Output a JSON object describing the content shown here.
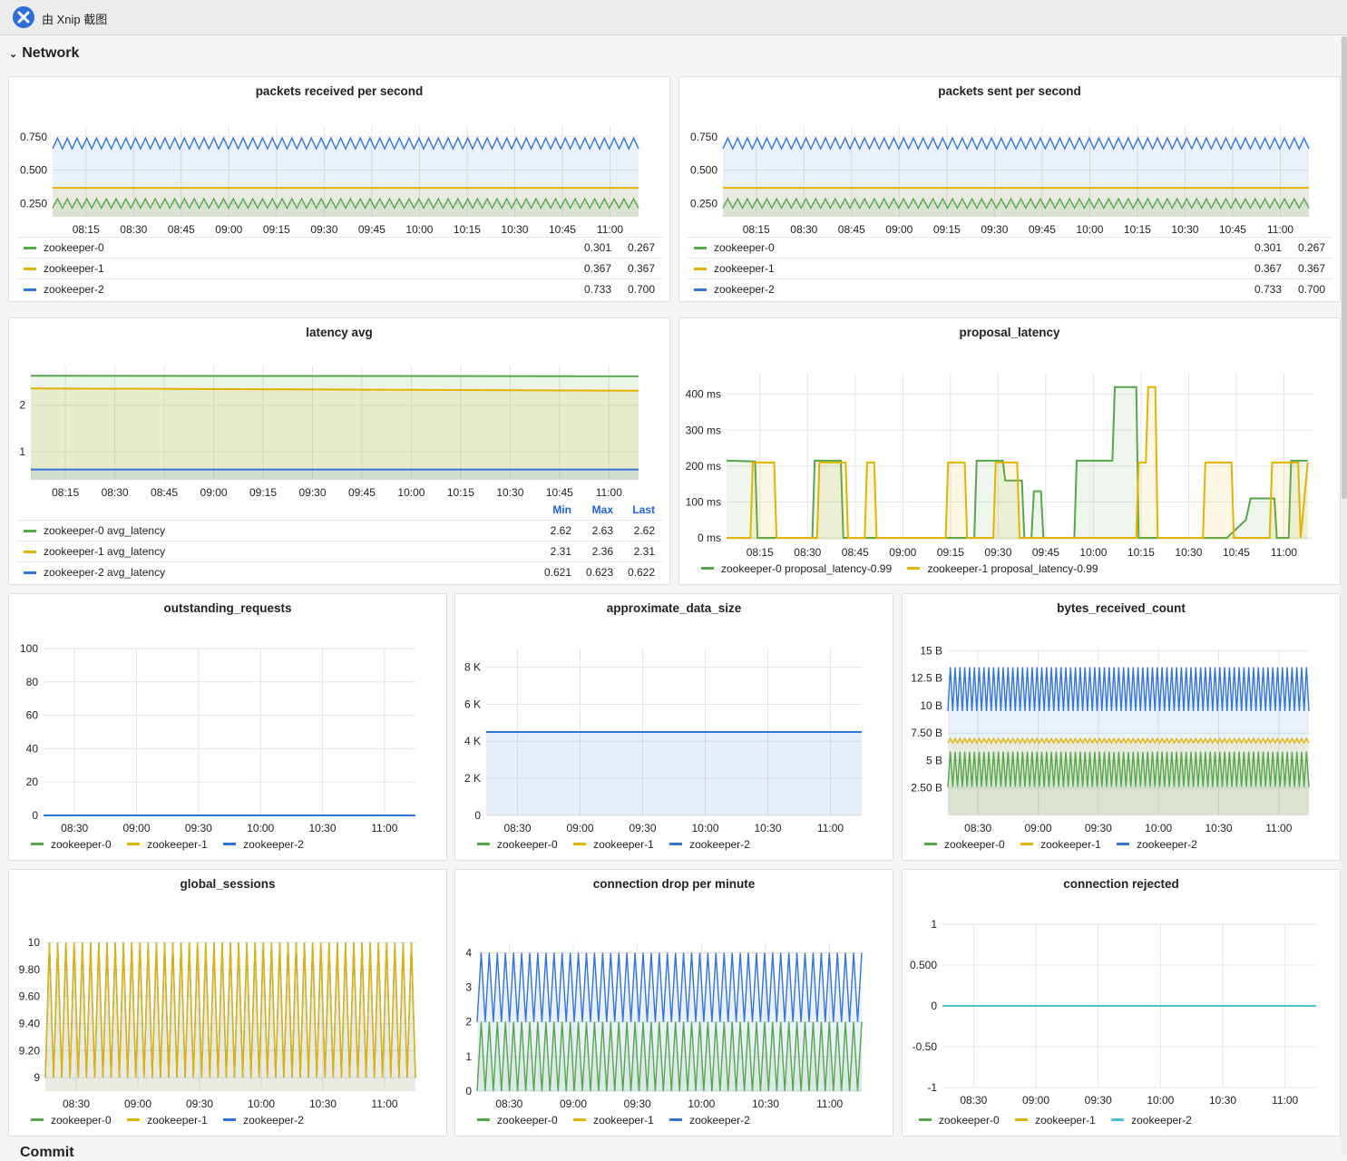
{
  "window": {
    "title": "由 Xnip 截图"
  },
  "row": {
    "title": "Network",
    "next_title": "Commit"
  },
  "colors": {
    "green": "#56a64b",
    "yellow": "#e0b400",
    "blue": "#3274d9",
    "teal": "#4fc0d0"
  },
  "panels": {
    "p1": {
      "title": "packets received per second",
      "legend": [
        {
          "name": "zookeeper-0",
          "color": "#56a64b",
          "v1": "0.301",
          "v2": "0.267"
        },
        {
          "name": "zookeeper-1",
          "color": "#e0b400",
          "v1": "0.367",
          "v2": "0.367"
        },
        {
          "name": "zookeeper-2",
          "color": "#3274d9",
          "v1": "0.733",
          "v2": "0.700"
        }
      ]
    },
    "p2": {
      "title": "packets sent per second",
      "legend": [
        {
          "name": "zookeeper-0",
          "color": "#56a64b",
          "v1": "0.301",
          "v2": "0.267"
        },
        {
          "name": "zookeeper-1",
          "color": "#e0b400",
          "v1": "0.367",
          "v2": "0.367"
        },
        {
          "name": "zookeeper-2",
          "color": "#3274d9",
          "v1": "0.733",
          "v2": "0.700"
        }
      ]
    },
    "p3": {
      "title": "latency avg",
      "legend_headers": [
        "Min",
        "Max",
        "Last"
      ],
      "legend": [
        {
          "name": "zookeeper-0 avg_latency",
          "color": "#56a64b",
          "v1": "2.62",
          "v2": "2.63",
          "v3": "2.62"
        },
        {
          "name": "zookeeper-1 avg_latency",
          "color": "#e0b400",
          "v1": "2.31",
          "v2": "2.36",
          "v3": "2.31"
        },
        {
          "name": "zookeeper-2 avg_latency",
          "color": "#3274d9",
          "v1": "0.621",
          "v2": "0.623",
          "v3": "0.622"
        }
      ]
    },
    "p4": {
      "title": "proposal_latency",
      "legend": [
        {
          "name": "zookeeper-0 proposal_latency-0.99",
          "color": "#56a64b"
        },
        {
          "name": "zookeeper-1 proposal_latency-0.99",
          "color": "#e0b400"
        }
      ]
    },
    "p5": {
      "title": "outstanding_requests"
    },
    "p6": {
      "title": "approximate_data_size"
    },
    "p7": {
      "title": "bytes_received_count"
    },
    "p8": {
      "title": "global_sessions"
    },
    "p9": {
      "title": "connection drop per minute"
    },
    "p10": {
      "title": "connection rejected"
    },
    "legend3": [
      {
        "name": "zookeeper-0",
        "color": "#56a64b"
      },
      {
        "name": "zookeeper-1",
        "color": "#e0b400"
      },
      {
        "name": "zookeeper-2",
        "color": "#3274d9"
      }
    ],
    "legend3_teal": [
      {
        "name": "zookeeper-0",
        "color": "#56a64b"
      },
      {
        "name": "zookeeper-1",
        "color": "#e0b400"
      },
      {
        "name": "zookeeper-2",
        "color": "#4fc0d0"
      }
    ]
  },
  "chart_data": [
    {
      "id": "c1",
      "type": "line",
      "title": "packets received per second",
      "x_ticks": [
        "08:15",
        "08:30",
        "08:45",
        "09:00",
        "09:15",
        "09:30",
        "09:45",
        "10:00",
        "10:15",
        "10:30",
        "10:45",
        "11:00"
      ],
      "y_ticks": [
        "0.250",
        "0.500",
        "0.750"
      ],
      "y_tick_values": [
        0.25,
        0.5,
        0.75
      ],
      "ylim": [
        0.15,
        0.83
      ],
      "xlim": [
        0,
        12.3
      ],
      "series": [
        {
          "name": "zookeeper-2",
          "base": 0.7,
          "amp": 0.04,
          "osc": 120
        },
        {
          "name": "zookeeper-1",
          "base": 0.367,
          "amp": 0,
          "osc": 0
        },
        {
          "name": "zookeeper-0",
          "base": 0.25,
          "amp": 0.035,
          "osc": 120
        }
      ]
    },
    {
      "id": "c2",
      "type": "line",
      "title": "packets sent per second",
      "x_ticks": [
        "08:15",
        "08:30",
        "08:45",
        "09:00",
        "09:15",
        "09:30",
        "09:45",
        "10:00",
        "10:15",
        "10:30",
        "10:45",
        "11:00"
      ],
      "y_ticks": [
        "0.250",
        "0.500",
        "0.750"
      ],
      "y_tick_values": [
        0.25,
        0.5,
        0.75
      ],
      "ylim": [
        0.15,
        0.83
      ],
      "xlim": [
        0,
        12.3
      ],
      "series": [
        {
          "name": "zookeeper-2",
          "base": 0.7,
          "amp": 0.04,
          "osc": 120
        },
        {
          "name": "zookeeper-1",
          "base": 0.367,
          "amp": 0,
          "osc": 0
        },
        {
          "name": "zookeeper-0",
          "base": 0.25,
          "amp": 0.035,
          "osc": 120
        }
      ]
    },
    {
      "id": "c3",
      "type": "area",
      "title": "latency avg",
      "x_ticks": [
        "08:15",
        "08:30",
        "08:45",
        "09:00",
        "09:15",
        "09:30",
        "09:45",
        "10:00",
        "10:15",
        "10:30",
        "10:45",
        "11:00"
      ],
      "y_ticks": [
        "1",
        "2"
      ],
      "y_tick_values": [
        1,
        2
      ],
      "ylim": [
        0.4,
        2.85
      ],
      "xlim": [
        0,
        12.3
      ],
      "series": [
        {
          "name": "zookeeper-0 avg_latency",
          "values": [
            2.63,
            2.62
          ]
        },
        {
          "name": "zookeeper-1 avg_latency",
          "values": [
            2.36,
            2.31
          ]
        },
        {
          "name": "zookeeper-2 avg_latency",
          "values": [
            0.622,
            0.622
          ]
        }
      ]
    },
    {
      "id": "c4",
      "type": "line",
      "title": "proposal_latency",
      "x_ticks": [
        "08:15",
        "08:30",
        "08:45",
        "09:00",
        "09:15",
        "09:30",
        "09:45",
        "10:00",
        "10:15",
        "10:30",
        "10:45",
        "11:00"
      ],
      "y_ticks": [
        "0 ms",
        "100 ms",
        "200 ms",
        "300 ms",
        "400 ms"
      ],
      "y_tick_values": [
        0,
        100,
        200,
        300,
        400
      ],
      "ylim": [
        -5,
        460
      ],
      "xlim": [
        0,
        12.3
      ],
      "series": [
        {
          "name": "zookeeper-0 proposal_latency-0.99",
          "values": [
            [
              0,
              215
            ],
            [
              0.6,
              213
            ],
            [
              0.65,
              0
            ],
            [
              1.8,
              0
            ],
            [
              1.85,
              215
            ],
            [
              2.4,
              215
            ],
            [
              2.45,
              0
            ],
            [
              4,
              0
            ],
            [
              5.2,
              0
            ],
            [
              5.25,
              215
            ],
            [
              5.8,
              215
            ],
            [
              5.85,
              160
            ],
            [
              6.2,
              160
            ],
            [
              6.25,
              0
            ],
            [
              6.4,
              0
            ],
            [
              6.45,
              130
            ],
            [
              6.6,
              130
            ],
            [
              6.65,
              0
            ],
            [
              7.3,
              0
            ],
            [
              7.35,
              215
            ],
            [
              8.1,
              215
            ],
            [
              8.15,
              420
            ],
            [
              8.6,
              420
            ],
            [
              8.65,
              0
            ],
            [
              10.5,
              0
            ],
            [
              10.9,
              50
            ],
            [
              11,
              110
            ],
            [
              11.5,
              110
            ],
            [
              11.55,
              0
            ],
            [
              11.8,
              0
            ],
            [
              11.85,
              215
            ],
            [
              12.2,
              215
            ]
          ]
        },
        {
          "name": "zookeeper-1 proposal_latency-0.99",
          "values": [
            [
              0,
              0
            ],
            [
              0.5,
              0
            ],
            [
              0.55,
              210
            ],
            [
              1.0,
              210
            ],
            [
              1.05,
              0
            ],
            [
              1.9,
              0
            ],
            [
              1.95,
              210
            ],
            [
              2.5,
              210
            ],
            [
              2.55,
              0
            ],
            [
              2.9,
              0
            ],
            [
              2.95,
              210
            ],
            [
              3.1,
              210
            ],
            [
              3.15,
              0
            ],
            [
              4.6,
              0
            ],
            [
              4.65,
              210
            ],
            [
              5.0,
              210
            ],
            [
              5.05,
              0
            ],
            [
              5.6,
              0
            ],
            [
              5.65,
              210
            ],
            [
              6.1,
              210
            ],
            [
              6.15,
              0
            ],
            [
              8.6,
              0
            ],
            [
              8.65,
              210
            ],
            [
              8.8,
              210
            ],
            [
              8.85,
              420
            ],
            [
              9.0,
              420
            ],
            [
              9.05,
              0
            ],
            [
              10.0,
              0
            ],
            [
              10.05,
              210
            ],
            [
              10.6,
              210
            ],
            [
              10.65,
              0
            ],
            [
              11.4,
              0
            ],
            [
              11.45,
              210
            ],
            [
              12.0,
              210
            ],
            [
              12.05,
              0
            ],
            [
              12.2,
              210
            ]
          ]
        }
      ]
    },
    {
      "id": "c5",
      "type": "line",
      "title": "outstanding_requests",
      "x_ticks": [
        "08:30",
        "09:00",
        "09:30",
        "10:00",
        "10:30",
        "11:00"
      ],
      "y_ticks": [
        "0",
        "20",
        "40",
        "60",
        "80",
        "100"
      ],
      "y_tick_values": [
        0,
        20,
        40,
        60,
        80,
        100
      ],
      "ylim": [
        0,
        100
      ],
      "xlim": [
        0,
        6
      ],
      "series": [
        {
          "name": "zookeeper-2",
          "values": [
            0,
            0
          ]
        }
      ]
    },
    {
      "id": "c6",
      "type": "area",
      "title": "approximate_data_size",
      "x_ticks": [
        "08:30",
        "09:00",
        "09:30",
        "10:00",
        "10:30",
        "11:00"
      ],
      "y_ticks": [
        "0",
        "2 K",
        "4 K",
        "6 K",
        "8 K"
      ],
      "y_tick_values": [
        0,
        2000,
        4000,
        6000,
        8000
      ],
      "ylim": [
        0,
        9000
      ],
      "xlim": [
        0,
        6
      ],
      "series": [
        {
          "name": "zookeeper-2",
          "values": [
            4500,
            4500
          ]
        }
      ]
    },
    {
      "id": "c7",
      "type": "line",
      "title": "bytes_received_count",
      "x_ticks": [
        "08:30",
        "09:00",
        "09:30",
        "10:00",
        "10:30",
        "11:00"
      ],
      "y_ticks": [
        "2.50 B",
        "5 B",
        "7.50 B",
        "10 B",
        "12.5 B",
        "15 B"
      ],
      "y_tick_values": [
        2.5,
        5,
        7.5,
        10,
        12.5,
        15
      ],
      "ylim": [
        0,
        15.2
      ],
      "xlim": [
        0,
        6
      ],
      "series": [
        {
          "name": "zookeeper-2",
          "base": 11.5,
          "amp": 2,
          "osc": 150
        },
        {
          "name": "zookeeper-1",
          "base": 6.8,
          "amp": 0.2,
          "osc": 150
        },
        {
          "name": "zookeeper-0",
          "base": 4.2,
          "amp": 1.6,
          "osc": 150
        }
      ]
    },
    {
      "id": "c8",
      "type": "line",
      "title": "global_sessions",
      "x_ticks": [
        "08:30",
        "09:00",
        "09:30",
        "10:00",
        "10:30",
        "11:00"
      ],
      "y_ticks": [
        "9",
        "9.20",
        "9.40",
        "9.60",
        "9.80",
        "10"
      ],
      "y_tick_values": [
        9,
        9.2,
        9.4,
        9.6,
        9.8,
        10
      ],
      "ylim": [
        8.9,
        10
      ],
      "xlim": [
        0,
        6
      ],
      "series": [
        {
          "name": "zookeeper-2",
          "base": 9.5,
          "amp": 0.5,
          "osc": 90
        },
        {
          "name": "zookeeper-1",
          "base": 9.5,
          "amp": 0.5,
          "osc": 90
        }
      ]
    },
    {
      "id": "c9",
      "type": "line",
      "title": "connection drop per minute",
      "x_ticks": [
        "08:30",
        "09:00",
        "09:30",
        "10:00",
        "10:30",
        "11:00"
      ],
      "y_ticks": [
        "0",
        "1",
        "2",
        "3",
        "4"
      ],
      "y_tick_values": [
        0,
        1,
        2,
        3,
        4
      ],
      "ylim": [
        0,
        4.3
      ],
      "xlim": [
        0,
        6
      ],
      "series": [
        {
          "name": "zookeeper-2",
          "base": 3,
          "amp": 1,
          "osc": 95
        },
        {
          "name": "zookeeper-0",
          "base": 1,
          "amp": 1,
          "osc": 95
        }
      ]
    },
    {
      "id": "c10",
      "type": "line",
      "title": "connection rejected",
      "x_ticks": [
        "08:30",
        "09:00",
        "09:30",
        "10:00",
        "10:30",
        "11:00"
      ],
      "y_ticks": [
        "-1",
        "-0.50",
        "0",
        "0.500",
        "1"
      ],
      "y_tick_values": [
        -1,
        -0.5,
        0,
        0.5,
        1
      ],
      "ylim": [
        -1,
        1
      ],
      "xlim": [
        0,
        6
      ],
      "series": [
        {
          "name": "zookeeper-2",
          "values": [
            0,
            0
          ]
        }
      ]
    }
  ]
}
